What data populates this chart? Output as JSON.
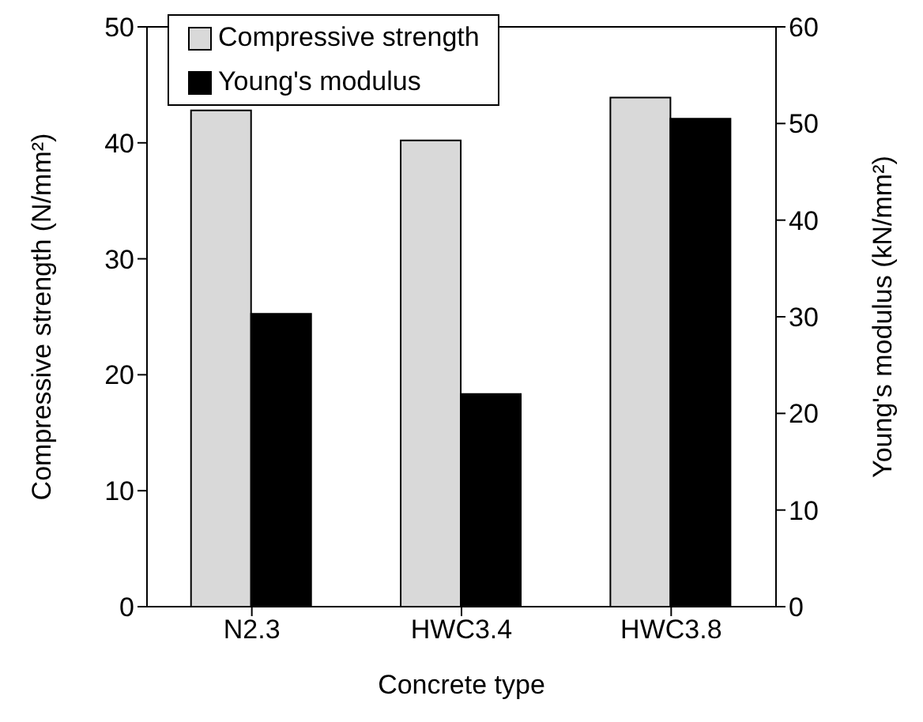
{
  "chart_data": {
    "type": "bar",
    "xlabel": "Concrete type",
    "ylabel": "Compressive strength (N/mm²)",
    "y2label": "Young's modulus (kN/mm²)",
    "categories": [
      "N2.3",
      "HWC3.4",
      "HWC3.8"
    ],
    "series": [
      {
        "name": "Compressive strength",
        "color": "#d9d9d9",
        "values": [
          42.8,
          40.2,
          43.9
        ]
      },
      {
        "name": "Young's modulus",
        "color": "#000000",
        "values": [
          30.3,
          22.0,
          50.5
        ],
        "axis": "y2"
      }
    ],
    "ylim": [
      0,
      50
    ],
    "yticks": [
      0,
      10,
      20,
      30,
      40,
      50
    ],
    "y2lim": [
      0,
      60
    ],
    "y2ticks": [
      0,
      10,
      20,
      30,
      40,
      50,
      60
    ],
    "grid": false,
    "legend": "top left"
  }
}
